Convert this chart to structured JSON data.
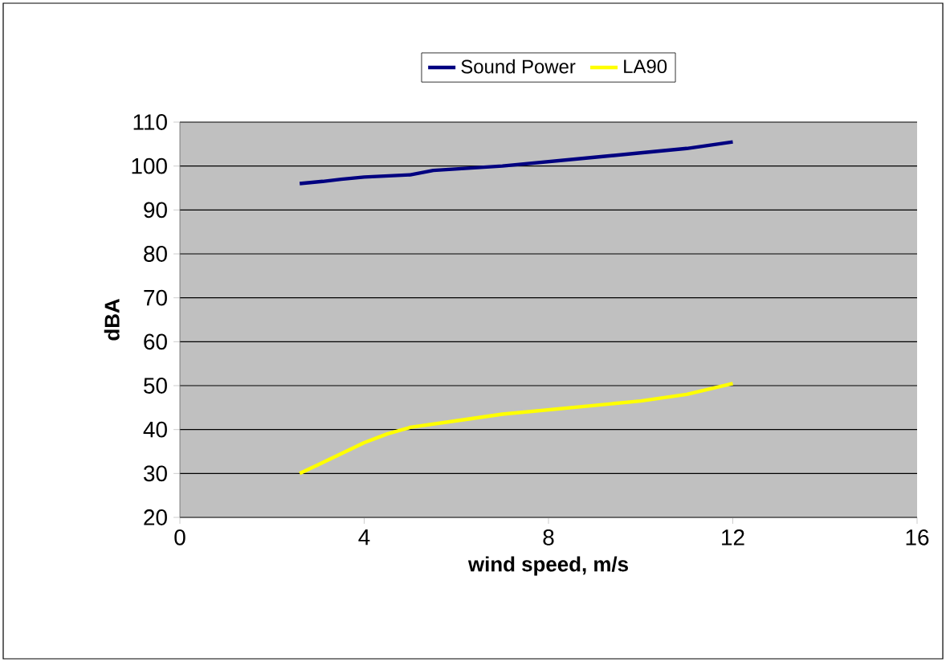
{
  "chart_data": {
    "type": "line",
    "xlabel": "wind speed, m/s",
    "ylabel": "dBA",
    "xlim": [
      0,
      16
    ],
    "xticks": [
      0,
      4,
      8,
      12,
      16
    ],
    "ylim": [
      20,
      110
    ],
    "yticks": [
      20,
      30,
      40,
      50,
      60,
      70,
      80,
      90,
      100,
      110
    ],
    "grid": "y",
    "legend": "top",
    "line_style": "solid",
    "series": [
      {
        "name": "Sound Power",
        "color": "#000080",
        "x": [
          2.6,
          3.1,
          3.5,
          4,
          5,
          5.5,
          7,
          8,
          9,
          10,
          11,
          12
        ],
        "values": [
          96,
          96.5,
          97,
          97.5,
          98,
          99,
          100,
          101,
          102,
          103,
          104,
          105.5
        ]
      },
      {
        "name": "LA90",
        "color": "#ffff00",
        "x": [
          2.6,
          3,
          3.5,
          4,
          4.5,
          5,
          6,
          7,
          8,
          9,
          10,
          11,
          12
        ],
        "values": [
          30,
          32,
          34.5,
          37,
          39,
          40.5,
          42,
          43.5,
          44.5,
          45.5,
          46.5,
          48,
          50.5
        ]
      }
    ]
  }
}
